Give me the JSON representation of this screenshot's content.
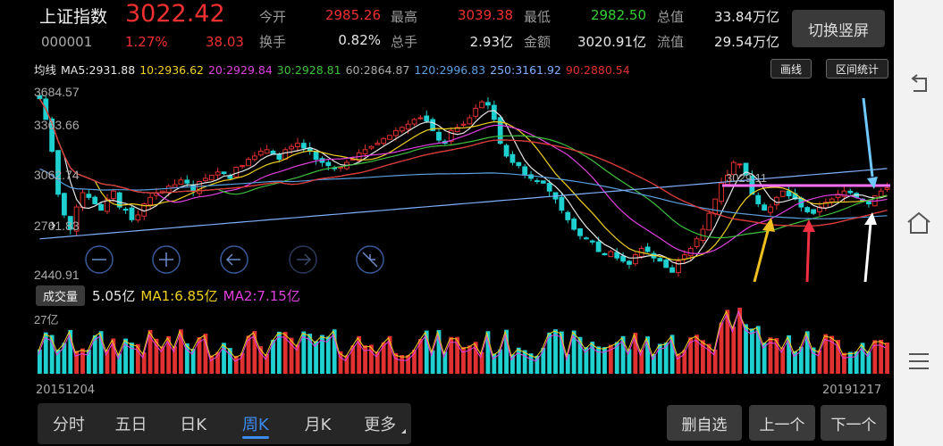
{
  "header": {
    "name": "上证指数",
    "price": "3022.42",
    "code": "000001",
    "change_pct": "1.27%",
    "change_amt": "38.03",
    "stats": [
      {
        "label": "今开",
        "value": "2985.26",
        "color": "red"
      },
      {
        "label": "最高",
        "value": "3039.38",
        "color": "red"
      },
      {
        "label": "最低",
        "value": "2982.50",
        "color": "green"
      },
      {
        "label": "总值",
        "value": "33.84万亿",
        "color": "white"
      },
      {
        "label": "换手",
        "value": "0.82%",
        "color": "white"
      },
      {
        "label": "总手",
        "value": "2.93亿",
        "color": "white"
      },
      {
        "label": "金额",
        "value": "3020.91亿",
        "color": "white"
      },
      {
        "label": "流值",
        "value": "29.54万亿",
        "color": "white"
      }
    ],
    "switch_label": "切换竖屏"
  },
  "ma_legend": [
    {
      "text": "均线",
      "color": "#e6e6e6"
    },
    {
      "text": "MA5:2931.88",
      "color": "#e6e6e6"
    },
    {
      "text": "10:2936.62",
      "color": "#f0d020"
    },
    {
      "text": "20:2929.84",
      "color": "#e040e0"
    },
    {
      "text": "30:2928.81",
      "color": "#40c040"
    },
    {
      "text": "60:2864.87",
      "color": "#aaaaaa"
    },
    {
      "text": "120:2996.83",
      "color": "#5aa0e0"
    },
    {
      "text": "250:3161.92",
      "color": "#80b0ff"
    },
    {
      "text": "90:2880.54",
      "color": "#e03030"
    }
  ],
  "buttons": {
    "draw": "画线",
    "range_stats": "区间统计"
  },
  "axis": {
    "y_labels": [
      "3684.57",
      "3363.66",
      "3062.74",
      "2761.83",
      "2440.91"
    ],
    "overlay_label": "3029.11",
    "start_date": "20151204",
    "end_date": "20191217"
  },
  "volume": {
    "button": "成交量",
    "value": "5.05亿",
    "ma1": "MA1:6.85亿",
    "ma2": "MA2:7.15亿",
    "axis_label": "27亿"
  },
  "tabs": [
    {
      "label": "分时",
      "active": false
    },
    {
      "label": "五日",
      "active": false
    },
    {
      "label": "日K",
      "active": false
    },
    {
      "label": "周K",
      "active": true
    },
    {
      "label": "月K",
      "active": false
    },
    {
      "label": "更多",
      "active": false
    }
  ],
  "bottom_buttons": {
    "remove": "删自选",
    "prev": "上一个",
    "next": "下一个"
  },
  "chart_data": {
    "type": "candlestick",
    "ylim": [
      2440.91,
      3684.57
    ],
    "series_close": [
      3580,
      3450,
      3250,
      2980,
      2850,
      2760,
      2900,
      2990,
      2960,
      2920,
      2880,
      2950,
      3000,
      2900,
      2880,
      2820,
      2850,
      2920,
      2960,
      2990,
      3000,
      3030,
      3040,
      3070,
      3050,
      3000,
      3060,
      3080,
      3100,
      3120,
      3110,
      3080,
      3150,
      3160,
      3200,
      3220,
      3250,
      3260,
      3230,
      3200,
      3260,
      3280,
      3300,
      3270,
      3250,
      3200,
      3180,
      3160,
      3140,
      3150,
      3180,
      3200,
      3240,
      3260,
      3280,
      3300,
      3330,
      3350,
      3380,
      3400,
      3420,
      3450,
      3460,
      3440,
      3380,
      3320,
      3300,
      3380,
      3400,
      3420,
      3460,
      3520,
      3560,
      3540,
      3450,
      3300,
      3220,
      3180,
      3160,
      3100,
      3080,
      3060,
      3050,
      3000,
      2950,
      2880,
      2820,
      2760,
      2720,
      2700,
      2680,
      2620,
      2600,
      2620,
      2580,
      2560,
      2540,
      2600,
      2640,
      2620,
      2580,
      2560,
      2520,
      2490,
      2560,
      2600,
      2640,
      2700,
      2760,
      2860,
      2950,
      3050,
      3100,
      3180,
      3170,
      3100,
      2980,
      2920,
      2880,
      2900,
      2960,
      3000,
      2970,
      2950,
      2900,
      2870,
      2860,
      2900,
      2930,
      2950,
      2980,
      3000,
      2990,
      2960,
      2940,
      2920,
      2970,
      3000,
      3020
    ],
    "ma_paths": {
      "ma5": "#e6e6e6",
      "ma10": "#f0d020",
      "ma20": "#e040e0",
      "ma30": "#40c040",
      "ma60": "#aaaaaa",
      "ma120": "#5aa0e0",
      "ma250": "#80b0ff",
      "ma90": "#e03030"
    }
  },
  "colors": {
    "up": "#e03030",
    "down": "#1fd0d0",
    "accent": "#3d8bf0",
    "bg": "#000000"
  },
  "nav": [
    "back-icon",
    "home-icon",
    "menu-icon"
  ]
}
